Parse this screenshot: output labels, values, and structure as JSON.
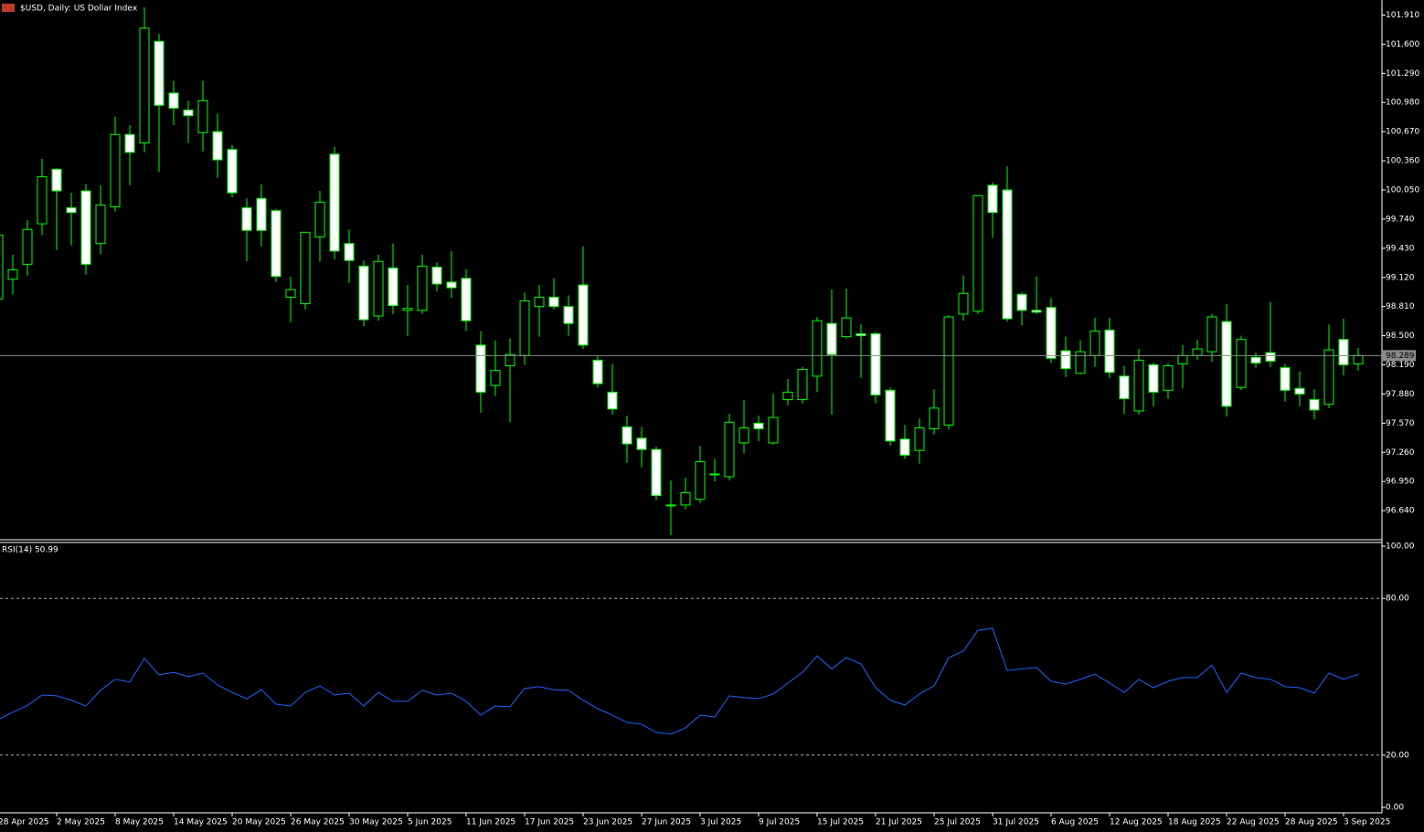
{
  "chart_data": [
    {
      "type": "candlestick",
      "title": "$USD, Daily:  US Dollar Index",
      "categories": [
        "28 Apr 2025",
        null,
        null,
        null,
        "2 May 2025",
        null,
        null,
        null,
        "8 May 2025",
        null,
        null,
        null,
        "14 May 2025",
        null,
        null,
        null,
        "20 May 2025",
        null,
        null,
        null,
        "26 May 2025",
        null,
        null,
        null,
        "30 May 2025",
        null,
        null,
        null,
        "5 Jun 2025",
        null,
        null,
        null,
        "11 Jun 2025",
        null,
        null,
        null,
        "17 Jun 2025",
        null,
        null,
        null,
        "23 Jun 2025",
        null,
        null,
        null,
        "27 Jun 2025",
        null,
        null,
        null,
        "3 Jul 2025",
        null,
        null,
        null,
        "9 Jul 2025",
        null,
        null,
        null,
        "15 Jul 2025",
        null,
        null,
        null,
        "21 Jul 2025",
        null,
        null,
        null,
        "25 Jul 2025",
        null,
        null,
        null,
        "31 Jul 2025",
        null,
        null,
        null,
        "6 Aug 2025",
        null,
        null,
        null,
        "12 Aug 2025",
        null,
        null,
        null,
        "18 Aug 2025",
        null,
        null,
        null,
        "22 Aug 2025",
        null,
        null,
        null,
        "28 Aug 2025",
        null,
        null,
        null,
        "3 Sep 2025",
        null
      ],
      "open": [
        98.89,
        99.1,
        99.26,
        99.69,
        100.27,
        99.86,
        100.04,
        99.48,
        99.87,
        100.64,
        100.55,
        101.63,
        101.08,
        100.9,
        100.66,
        100.67,
        100.48,
        99.86,
        99.96,
        99.83,
        98.91,
        98.84,
        99.55,
        100.43,
        99.48,
        99.24,
        98.71,
        99.22,
        98.77,
        98.77,
        99.23,
        99.07,
        99.11,
        98.4,
        97.97,
        98.18,
        98.29,
        98.81,
        98.91,
        98.81,
        99.04,
        98.24,
        97.9,
        97.53,
        97.41,
        97.29,
        96.7,
        96.7,
        96.76,
        97.03,
        97.0,
        97.36,
        97.57,
        97.36,
        97.82,
        97.82,
        98.07,
        98.63,
        98.49,
        98.52,
        98.52,
        97.92,
        97.4,
        97.28,
        97.51,
        97.55,
        98.73,
        98.76,
        100.1,
        100.05,
        98.94,
        98.77,
        98.8,
        98.34,
        98.1,
        98.29,
        98.56,
        98.07,
        97.7,
        98.19,
        97.92,
        98.2,
        98.29,
        98.33,
        98.65,
        97.95,
        98.27,
        98.32,
        98.16,
        97.94,
        97.82,
        97.77,
        98.46,
        98.2
      ],
      "high": [
        99.6,
        99.36,
        99.73,
        100.38,
        100.28,
        100.02,
        100.11,
        100.1,
        100.83,
        100.74,
        101.99,
        101.71,
        101.21,
        101.0,
        101.21,
        100.86,
        100.53,
        99.96,
        100.11,
        99.85,
        99.13,
        99.6,
        100.04,
        100.51,
        99.63,
        99.3,
        99.36,
        99.48,
        99.04,
        99.36,
        99.28,
        99.4,
        99.21,
        98.55,
        98.45,
        98.47,
        98.96,
        99.04,
        99.11,
        98.93,
        99.45,
        98.29,
        98.2,
        97.65,
        97.53,
        97.32,
        96.96,
        96.99,
        97.33,
        97.19,
        97.67,
        97.82,
        97.65,
        97.88,
        98.04,
        98.17,
        98.7,
        98.99,
        99.0,
        98.62,
        98.54,
        97.95,
        97.55,
        97.62,
        97.93,
        98.72,
        99.14,
        99.99,
        100.13,
        100.3,
        98.96,
        99.13,
        98.9,
        98.49,
        98.45,
        98.69,
        98.69,
        98.18,
        98.36,
        98.21,
        98.21,
        98.4,
        98.46,
        98.73,
        98.84,
        98.5,
        98.32,
        98.86,
        98.2,
        98.12,
        97.93,
        98.62,
        98.68,
        98.37
      ],
      "low": [
        98.85,
        98.94,
        99.14,
        99.57,
        99.41,
        99.46,
        99.15,
        99.37,
        99.82,
        100.1,
        100.45,
        100.24,
        100.74,
        100.55,
        100.46,
        100.18,
        99.97,
        99.29,
        99.45,
        99.07,
        98.64,
        98.78,
        99.29,
        99.31,
        99.06,
        98.6,
        98.66,
        98.73,
        98.5,
        98.73,
        98.97,
        98.9,
        98.55,
        97.68,
        97.86,
        97.58,
        98.19,
        98.49,
        98.78,
        98.5,
        98.36,
        97.95,
        97.66,
        97.15,
        97.1,
        96.75,
        96.38,
        96.65,
        96.72,
        96.95,
        96.96,
        97.25,
        97.38,
        97.34,
        97.76,
        97.78,
        97.9,
        97.66,
        98.47,
        98.05,
        97.78,
        97.33,
        97.19,
        97.14,
        97.45,
        97.5,
        98.66,
        98.73,
        99.54,
        98.65,
        98.61,
        98.73,
        98.21,
        98.06,
        98.09,
        98.17,
        98.05,
        97.67,
        97.66,
        97.75,
        97.83,
        97.94,
        98.24,
        98.22,
        97.64,
        97.92,
        98.16,
        98.17,
        97.8,
        97.75,
        97.61,
        97.73,
        98.08,
        98.13
      ],
      "close": [
        99.57,
        99.2,
        99.63,
        100.19,
        100.04,
        99.81,
        99.26,
        99.89,
        100.64,
        100.45,
        101.77,
        100.95,
        100.92,
        100.84,
        101.0,
        100.37,
        100.02,
        99.62,
        99.62,
        99.13,
        98.99,
        99.6,
        99.92,
        99.4,
        99.3,
        98.67,
        99.29,
        98.82,
        98.79,
        99.24,
        99.05,
        99.01,
        98.66,
        97.9,
        98.13,
        98.3,
        98.87,
        98.91,
        98.81,
        98.63,
        98.4,
        97.99,
        97.72,
        97.35,
        97.29,
        96.8,
        96.7,
        96.83,
        97.16,
        97.02,
        97.58,
        97.52,
        97.51,
        97.63,
        97.9,
        98.14,
        98.66,
        98.3,
        98.69,
        98.5,
        97.87,
        97.38,
        97.23,
        97.52,
        97.73,
        98.7,
        98.95,
        99.99,
        99.81,
        98.68,
        98.77,
        98.75,
        98.26,
        98.15,
        98.33,
        98.55,
        98.11,
        97.83,
        98.24,
        97.9,
        98.18,
        98.29,
        98.36,
        98.7,
        97.75,
        98.46,
        98.21,
        98.23,
        97.92,
        97.88,
        97.71,
        98.35,
        98.19,
        98.29
      ],
      "up_color": "#000000",
      "down_color": "#ffffff",
      "wick_color": "#00ff00",
      "current_price": {
        "value": 98.289,
        "label": "98.289"
      },
      "ylim": [
        96.34,
        102.07
      ],
      "yticks": [
        {
          "value": 101.91,
          "label": "101.910"
        },
        {
          "value": 101.6,
          "label": "101.600"
        },
        {
          "value": 101.29,
          "label": "101.290"
        },
        {
          "value": 100.98,
          "label": "100.980"
        },
        {
          "value": 100.67,
          "label": "100.670"
        },
        {
          "value": 100.36,
          "label": "100.360"
        },
        {
          "value": 100.05,
          "label": "100.050"
        },
        {
          "value": 99.74,
          "label": "99.740"
        },
        {
          "value": 99.43,
          "label": "99.430"
        },
        {
          "value": 99.12,
          "label": "99.120"
        },
        {
          "value": 98.81,
          "label": "98.810"
        },
        {
          "value": 98.5,
          "label": "98.500"
        },
        {
          "value": 98.19,
          "label": "98.190"
        },
        {
          "value": 97.88,
          "label": "97.880"
        },
        {
          "value": 97.57,
          "label": "97.570"
        },
        {
          "value": 97.26,
          "label": "97.260"
        },
        {
          "value": 96.95,
          "label": "96.950"
        },
        {
          "value": 96.64,
          "label": "96.640"
        }
      ]
    },
    {
      "type": "line",
      "title": "RSI(14) 50.99",
      "color": "#1e64ff",
      "values": [
        33.6,
        36.4,
        39,
        43,
        42.7,
        41,
        38.8,
        44.8,
        49,
        48,
        57,
        50.7,
        51.7,
        50,
        51.4,
        46.9,
        44,
        41.6,
        45,
        39.5,
        38.8,
        44,
        46.5,
        43,
        43.7,
        38.8,
        44,
        40.6,
        40.6,
        44.8,
        43,
        43.7,
        40.6,
        35.3,
        38.8,
        38.5,
        45.5,
        46.2,
        45,
        44.8,
        41,
        37.8,
        35.3,
        32.5,
        31.8,
        28.7,
        28,
        30.4,
        35.3,
        34.6,
        42.7,
        42,
        41.6,
        43.4,
        47.6,
        51.7,
        58,
        53,
        57.3,
        54.9,
        45.8,
        41,
        39.2,
        43.4,
        46.5,
        57.3,
        59.8,
        67.8,
        68.5,
        52.4,
        53,
        53.5,
        48.3,
        47.2,
        49,
        51,
        47.6,
        44,
        49,
        45.8,
        48.3,
        49.7,
        49.7,
        54.5,
        44,
        51.4,
        49.7,
        49,
        46.2,
        45.8,
        43.7,
        51.4,
        49,
        50.99
      ],
      "ylim": [
        0,
        100
      ],
      "yticks": [
        {
          "value": 100,
          "label": "100.00"
        },
        {
          "value": 80,
          "label": "80.00"
        },
        {
          "value": 20,
          "label": "20.00"
        },
        {
          "value": 0,
          "label": "0.00"
        }
      ]
    }
  ]
}
